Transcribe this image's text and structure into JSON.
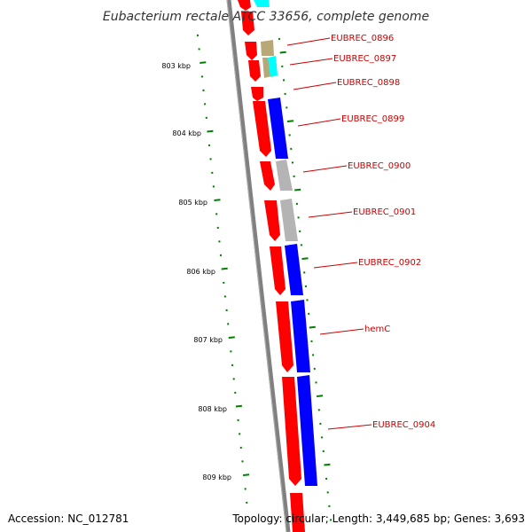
{
  "title": "Eubacterium rectale ATCC 33656, complete genome",
  "accession": "Accession: NC_012781",
  "topology": "Topology: circular; Length: 3,449,685 bp; Genes: 3,693",
  "colors": {
    "forward": "#ff0000",
    "reverse": "#0000ff",
    "cyan": "#00ffff",
    "khaki": "#b8a878",
    "gray": "#b4b4b4",
    "backbone": "#808080",
    "tick": "#008000",
    "label": "#cc0000"
  },
  "ticks": [
    {
      "label": "803 kbp"
    },
    {
      "label": "804 kbp"
    },
    {
      "label": "805 kbp"
    },
    {
      "label": "806 kbp"
    },
    {
      "label": "807 kbp"
    },
    {
      "label": "808 kbp"
    },
    {
      "label": "809 kbp"
    }
  ],
  "genes": [
    {
      "name": "EUBREC_0896"
    },
    {
      "name": "EUBREC_0897"
    },
    {
      "name": "EUBREC_0898"
    },
    {
      "name": "EUBREC_0899"
    },
    {
      "name": "EUBREC_0900"
    },
    {
      "name": "EUBREC_0901"
    },
    {
      "name": "EUBREC_0902"
    },
    {
      "name": "hemC"
    },
    {
      "name": "EUBREC_0904"
    }
  ]
}
